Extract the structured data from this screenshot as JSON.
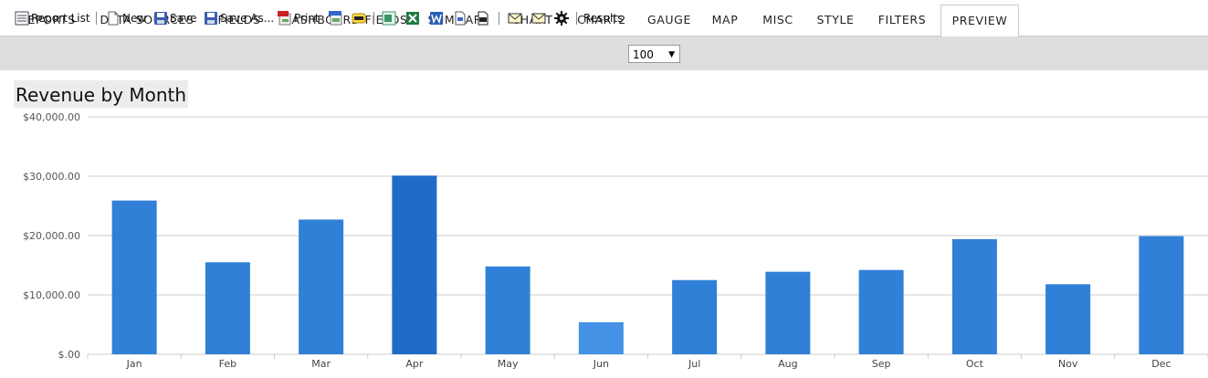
{
  "tabs": [
    "REPORTS",
    "DATA SOURCES",
    "FIELDS",
    "DASHBOARD FIELDS",
    "SUMMARY",
    "CHART",
    "CHART2",
    "GAUGE",
    "MAP",
    "MISC",
    "STYLE",
    "FILTERS",
    "PREVIEW"
  ],
  "active_tab": "PREVIEW",
  "toolbar": {
    "report_list": "Report List",
    "new": "New",
    "save": "Save",
    "save_as": "Save As...",
    "print": "Print",
    "results_label": "Results",
    "results_value": "100"
  },
  "report_title": "Revenue by Month",
  "colors": {
    "bar": "#3080d8",
    "bar_highlight": "#1e6cc6",
    "bar_light": "#4592e6",
    "grid": "#cccccc"
  },
  "chart_data": {
    "type": "bar",
    "title": "Revenue by Month",
    "categories": [
      "Jan",
      "Feb",
      "Mar",
      "Apr",
      "May",
      "Jun",
      "Jul",
      "Aug",
      "Sep",
      "Oct",
      "Nov",
      "Dec"
    ],
    "values": [
      25900,
      15500,
      22700,
      30100,
      14800,
      5400,
      12500,
      13900,
      14200,
      19400,
      11800,
      19900
    ],
    "y_ticks": [
      "$.00",
      "$10,000.00",
      "$20,000.00",
      "$30,000.00",
      "$40,000.00"
    ],
    "ylim": [
      0,
      40000
    ],
    "grid": true,
    "legend": "none"
  }
}
